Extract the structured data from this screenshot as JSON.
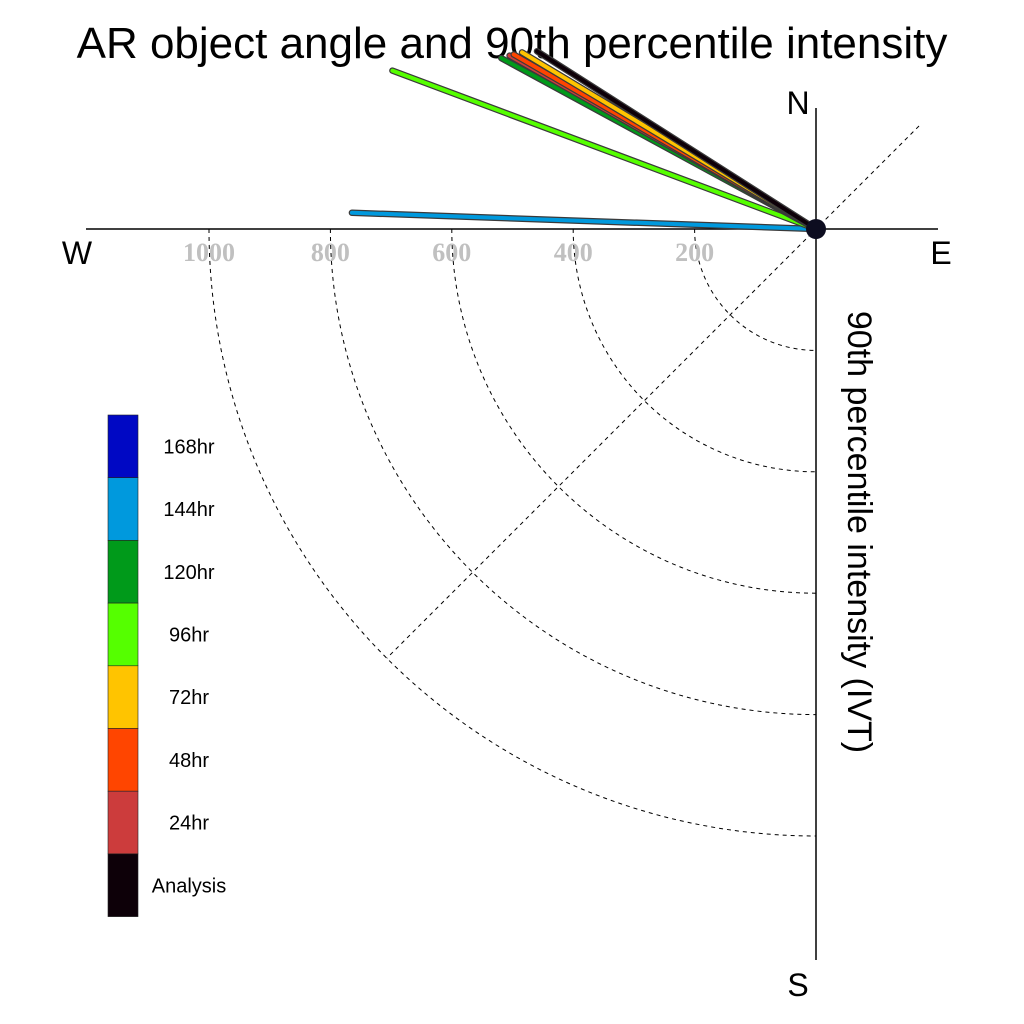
{
  "chart_data": {
    "type": "polar-rose",
    "title": "AR object angle and 90th percentile intensity",
    "axis_label": "90th percentile intensity (IVT)",
    "compass": {
      "north": "N",
      "south": "S",
      "east": "E",
      "west": "W"
    },
    "radial_ticks": [
      200,
      400,
      600,
      800,
      1000
    ],
    "radial_max": 1200,
    "series": [
      {
        "name": "144hr",
        "color": "#0099dd",
        "segments": [
          {
            "angle_deg": 272.0,
            "intensity": 765
          }
        ]
      },
      {
        "name": "96hr",
        "color": "#55ff00",
        "segments": [
          {
            "angle_deg": 290.5,
            "intensity": 745
          }
        ]
      },
      {
        "name": "120hr",
        "color": "#009a1a",
        "segments": [
          {
            "angle_deg": 298.5,
            "intensity": 590
          }
        ]
      },
      {
        "name": "24hr",
        "color": "#cc3c3c",
        "segments": [
          {
            "angle_deg": 299.5,
            "intensity": 580
          }
        ]
      },
      {
        "name": "48hr",
        "color": "#ff4500",
        "segments": [
          {
            "angle_deg": 300.0,
            "intensity": 575
          }
        ]
      },
      {
        "name": "72hr",
        "color": "#ffc400",
        "segments": [
          {
            "angle_deg": 301.0,
            "intensity": 565
          }
        ]
      },
      {
        "name": "Analysis",
        "color": "#0d0008",
        "segments": [
          {
            "angle_deg": 302.5,
            "intensity": 545
          }
        ]
      }
    ],
    "legend": [
      {
        "label": "168hr",
        "color": "#0008c4"
      },
      {
        "label": "144hr",
        "color": "#0099dd"
      },
      {
        "label": "120hr",
        "color": "#009a1a"
      },
      {
        "label": "96hr",
        "color": "#55ff00"
      },
      {
        "label": "72hr",
        "color": "#ffc400"
      },
      {
        "label": "48hr",
        "color": "#ff4500"
      },
      {
        "label": "24hr",
        "color": "#cc3c3c"
      },
      {
        "label": "Analysis",
        "color": "#0d0008"
      }
    ]
  }
}
